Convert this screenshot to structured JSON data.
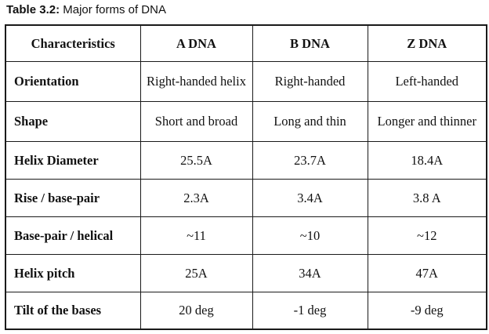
{
  "caption": {
    "label": "Table 3.2:",
    "text": "Major forms of DNA"
  },
  "table": {
    "headers": [
      "Characteristics",
      "A DNA",
      "B DNA",
      "Z DNA"
    ],
    "rows": [
      {
        "label": "Orientation",
        "cells": [
          "Right-handed helix",
          "Right-handed",
          "Left-handed"
        ]
      },
      {
        "label": "Shape",
        "cells": [
          "Short and broad",
          "Long and thin",
          "Longer and thinner"
        ]
      },
      {
        "label": "Helix Diameter",
        "cells": [
          "25.5A",
          "23.7A",
          "18.4A"
        ]
      },
      {
        "label": "Rise / base-pair",
        "cells": [
          "2.3A",
          "3.4A",
          "3.8 A"
        ]
      },
      {
        "label": "Base-pair / helical",
        "cells": [
          "~11",
          "~10",
          "~12"
        ]
      },
      {
        "label": "Helix pitch",
        "cells": [
          "25A",
          "34A",
          "47A"
        ]
      },
      {
        "label": "Tilt of the bases",
        "cells": [
          "20 deg",
          "-1 deg",
          "-9 deg"
        ]
      }
    ]
  }
}
